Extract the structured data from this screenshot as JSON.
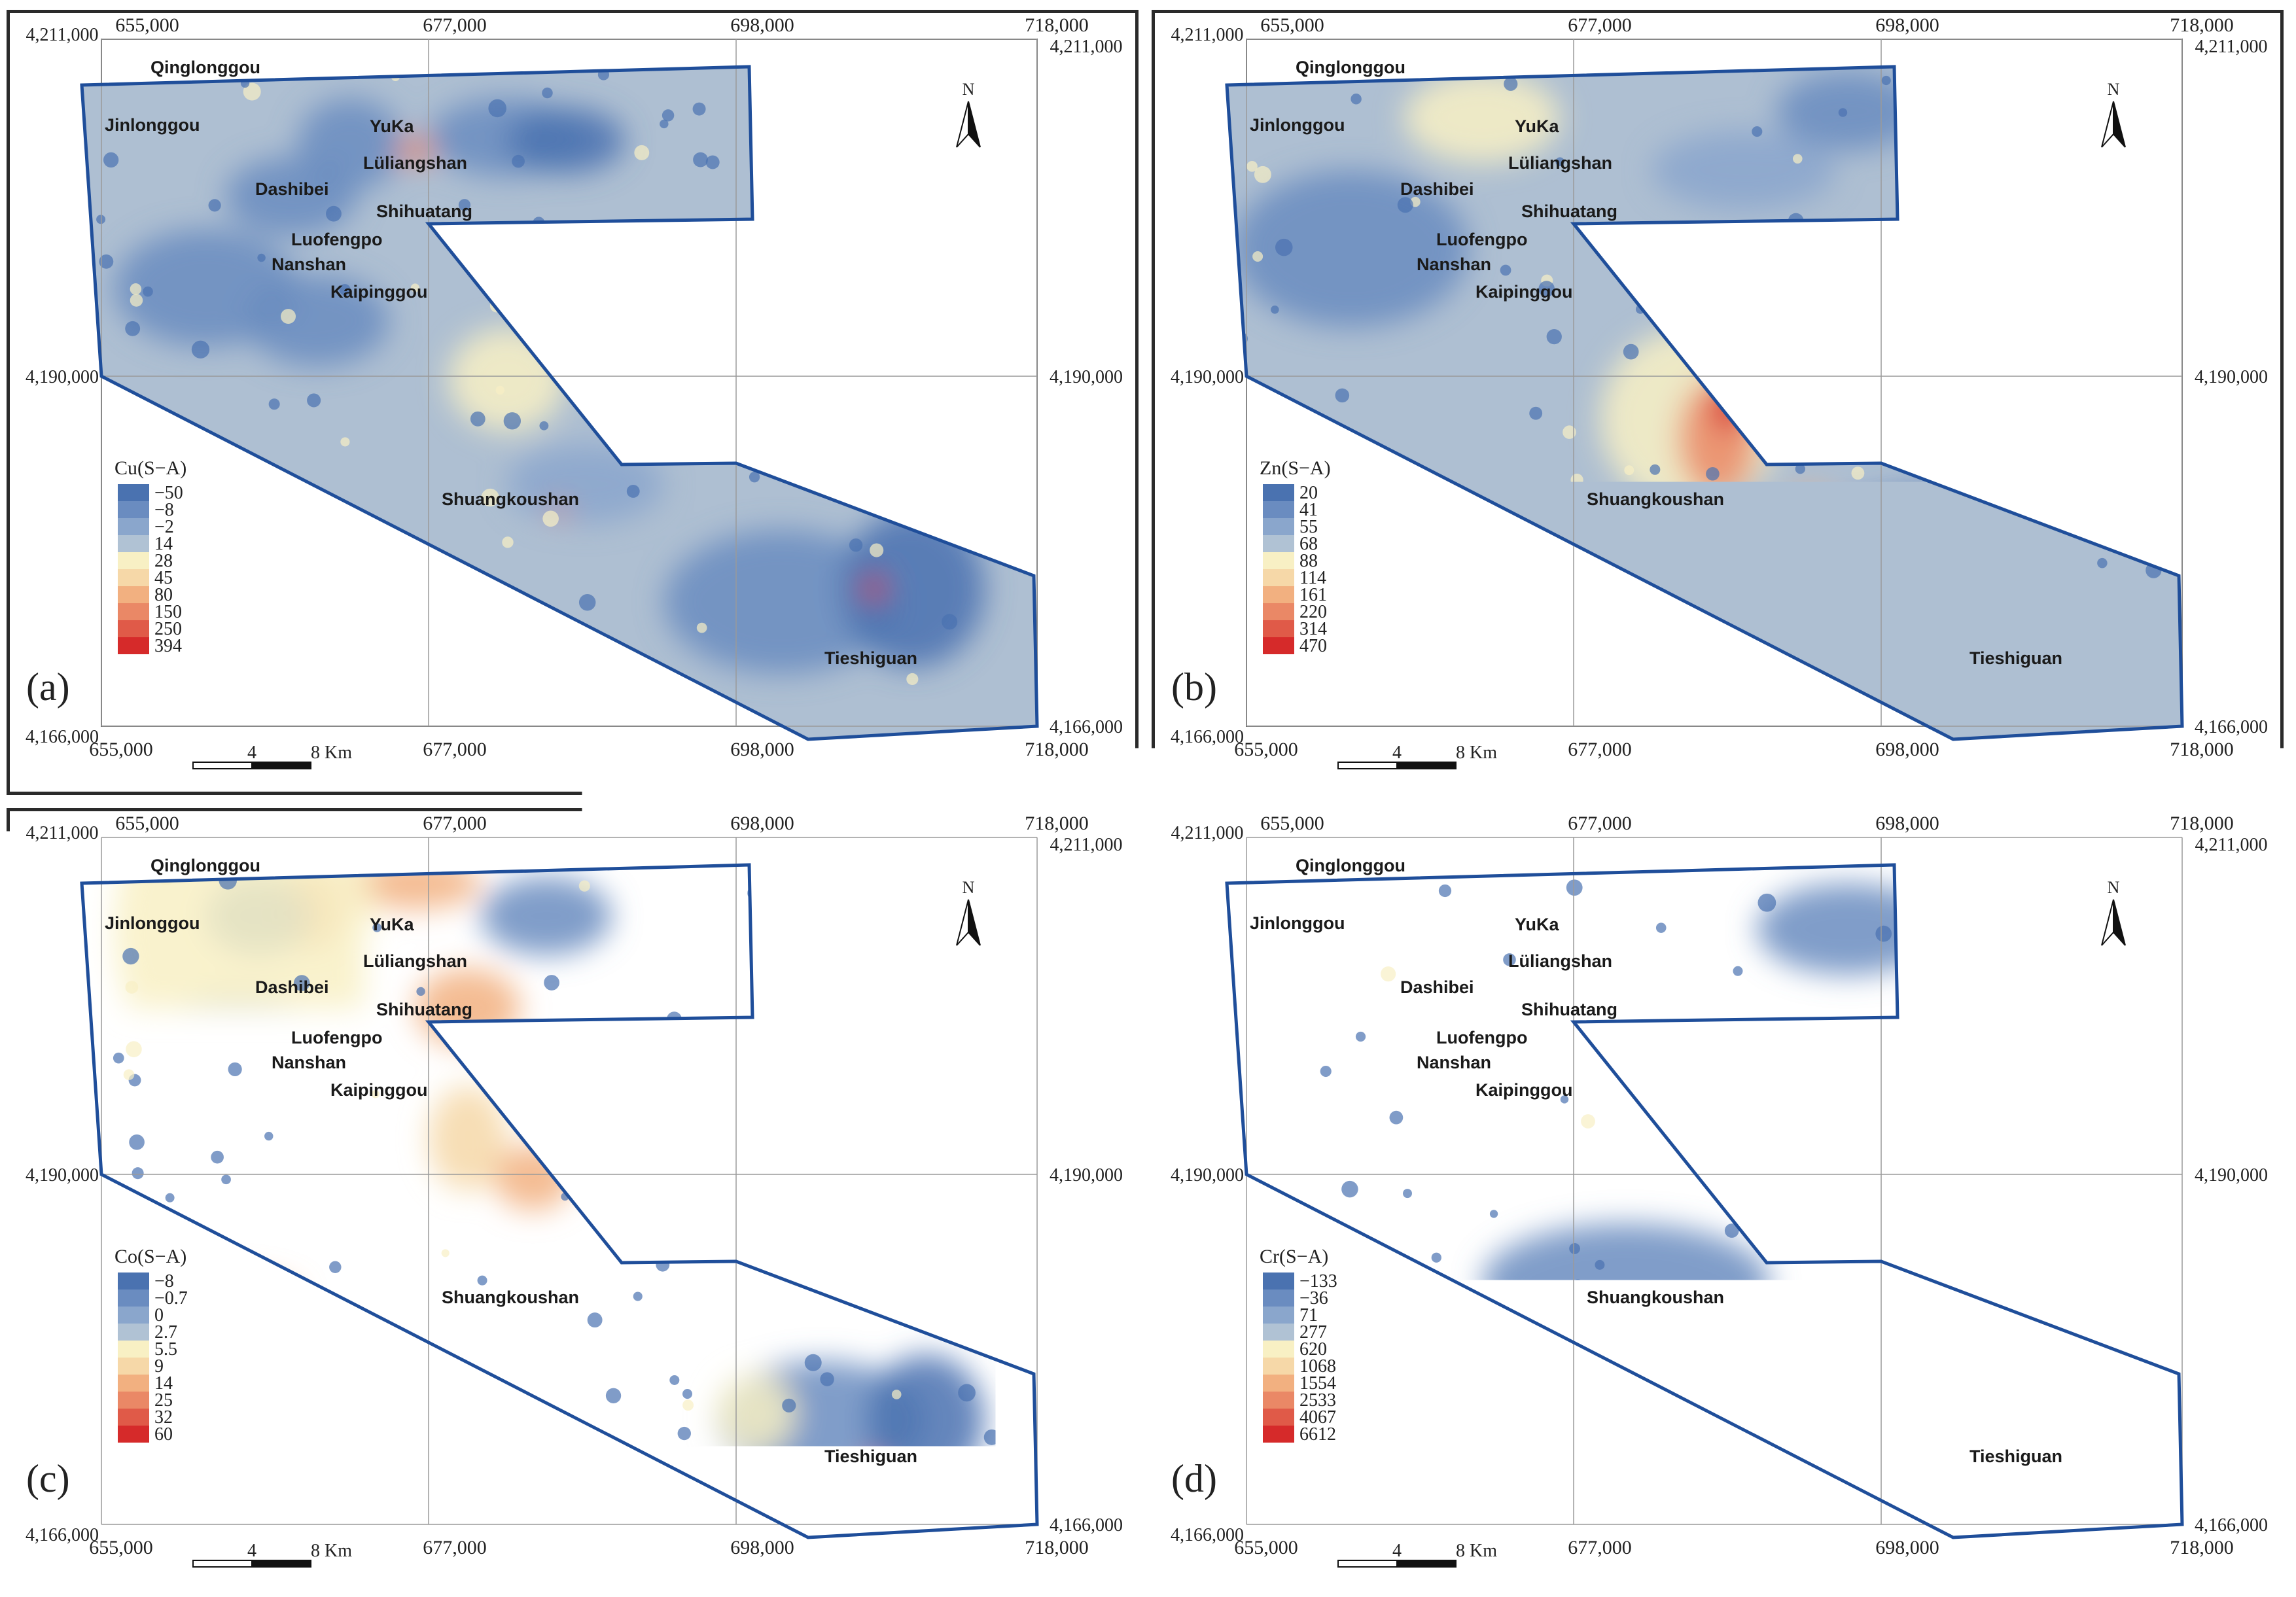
{
  "panels": [
    {
      "letter": "(a)",
      "legend_title": "Cu(S−A)",
      "classes": [
        "−50",
        "−8",
        "−2",
        "14",
        "28",
        "45",
        "80",
        "150",
        "250",
        "394"
      ],
      "top_x": [
        "655,000",
        "677,000",
        "698,000",
        "718,000"
      ],
      "bottom_x": [
        "655,000",
        "677,000",
        "698,000",
        "718,000"
      ],
      "left_y": [
        "4,211,000",
        "4,190,000",
        "4,166,000"
      ],
      "right_y": [
        "4,211,000",
        "4,190,000",
        "4,166,000"
      ],
      "scale": [
        "4",
        "8 Km"
      ],
      "north": "N",
      "colors": [
        "#4a72b0",
        "#6a8cc0",
        "#8aa6cc",
        "#b0c2d4",
        "#f8f0c4",
        "#f6d8a8",
        "#f2b080",
        "#ea8866",
        "#e05a48",
        "#d62a2a"
      ]
    },
    {
      "letter": "(b)",
      "legend_title": "Zn(S−A)",
      "classes": [
        "20",
        "41",
        "55",
        "68",
        "88",
        "114",
        "161",
        "220",
        "314",
        "470"
      ],
      "top_x": [
        "655,000",
        "677,000",
        "698,000",
        "718,000"
      ],
      "bottom_x": [
        "655,000",
        "677,000",
        "698,000",
        "718,000"
      ],
      "left_y": [
        "4,211,000",
        "4,190,000",
        "4,166,000"
      ],
      "right_y": [
        "4,211,000",
        "4,190,000",
        "4,166,000"
      ],
      "scale": [
        "4",
        "8 Km"
      ],
      "north": "N",
      "colors": [
        "#4a72b0",
        "#6a8cc0",
        "#8aa6cc",
        "#b0c2d4",
        "#f8f0c4",
        "#f6d8a8",
        "#f2b080",
        "#ea8866",
        "#e05a48",
        "#d62a2a"
      ]
    },
    {
      "letter": "(c)",
      "legend_title": "Co(S−A)",
      "classes": [
        "−8",
        "−0.7",
        "0",
        "2.7",
        "5.5",
        "9",
        "14",
        "25",
        "32",
        "60"
      ],
      "top_x": [
        "655,000",
        "677,000",
        "698,000",
        "718,000"
      ],
      "bottom_x": [
        "655,000",
        "677,000",
        "698,000",
        "718,000"
      ],
      "left_y": [
        "4,211,000",
        "4,190,000",
        "4,166,000"
      ],
      "right_y": [
        "4,211,000",
        "4,190,000",
        "4,166,000"
      ],
      "scale": [
        "4",
        "8 Km"
      ],
      "north": "N",
      "colors": [
        "#4a72b0",
        "#6a8cc0",
        "#8aa6cc",
        "#b0c2d4",
        "#f8f0c4",
        "#f6d8a8",
        "#f2b080",
        "#ea8866",
        "#e05a48",
        "#d62a2a"
      ]
    },
    {
      "letter": "(d)",
      "legend_title": "Cr(S−A)",
      "classes": [
        "−133",
        "−36",
        "71",
        "277",
        "620",
        "1068",
        "1554",
        "2533",
        "4067",
        "6612"
      ],
      "top_x": [
        "655,000",
        "677,000",
        "698,000",
        "718,000"
      ],
      "bottom_x": [
        "655,000",
        "677,000",
        "698,000",
        "718,000"
      ],
      "left_y": [
        "4,211,000",
        "4,190,000",
        "4,166,000"
      ],
      "right_y": [
        "4,211,000",
        "4,190,000",
        "4,166,000"
      ],
      "scale": [
        "4",
        "8 Km"
      ],
      "north": "N",
      "colors": [
        "#4a72b0",
        "#6a8cc0",
        "#8aa6cc",
        "#b0c2d4",
        "#f8f0c4",
        "#f6d8a8",
        "#f2b080",
        "#ea8866",
        "#e05a48",
        "#d62a2a"
      ]
    }
  ],
  "places": [
    "Qinglonggou",
    "Jinlonggou",
    "YuKa",
    "Lüliangshan",
    "Dashibei",
    "Shihuatang",
    "Luofengpo",
    "Nanshan",
    "Kaipinggou",
    "Shuangkoushan",
    "Tieshiguan"
  ]
}
